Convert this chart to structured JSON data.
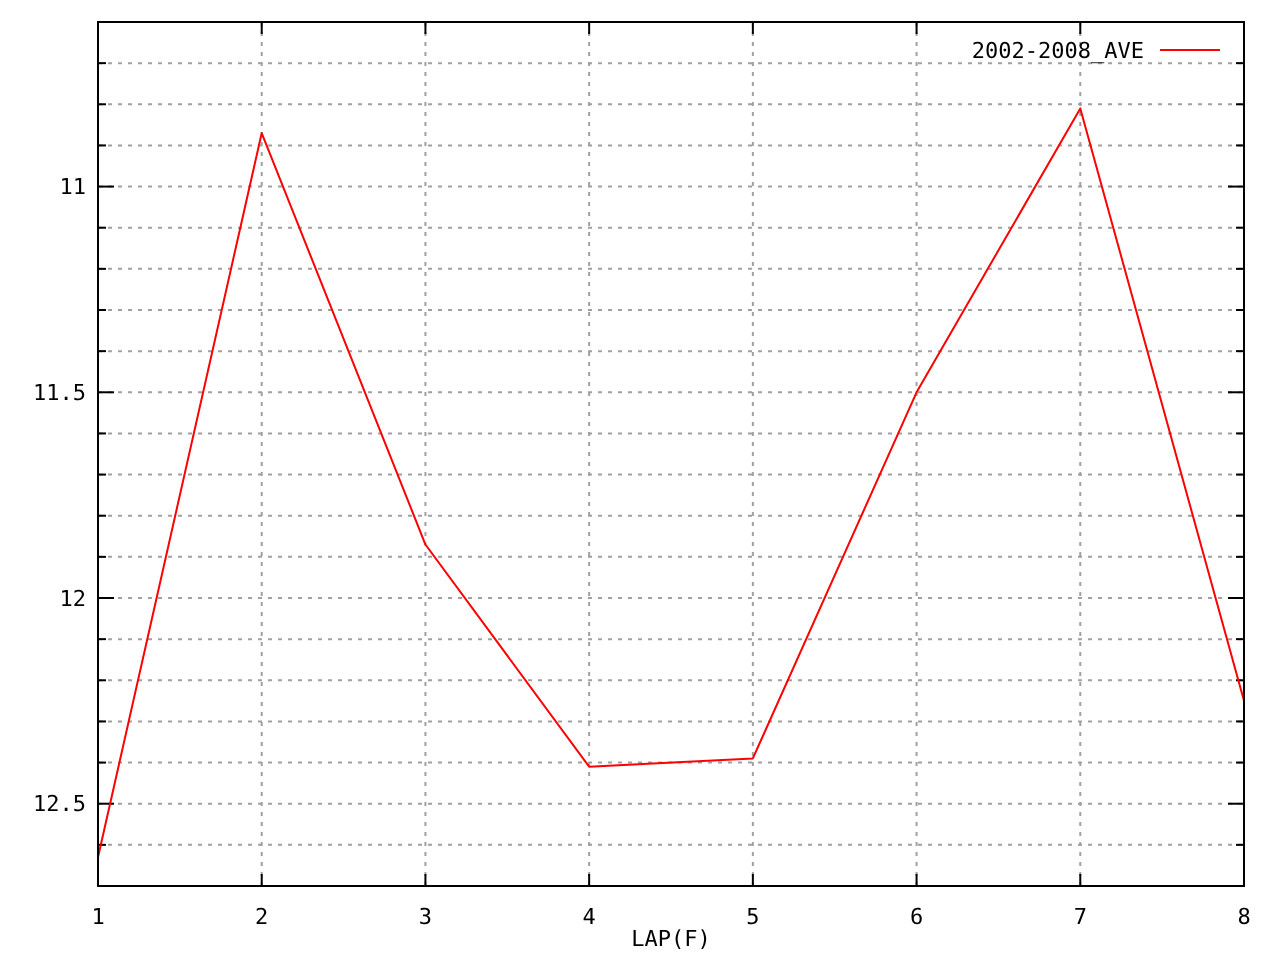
{
  "chart_data": {
    "type": "line",
    "xlabel": "LAP(F)",
    "x": [
      1,
      2,
      3,
      4,
      5,
      6,
      7,
      8
    ],
    "series": [
      {
        "name": "2002-2008_AVE",
        "color": "#ff0000",
        "values": [
          12.63,
          10.87,
          11.87,
          12.41,
          12.39,
          11.5,
          10.81,
          12.25
        ]
      }
    ],
    "xlim": [
      1,
      8
    ],
    "xticks": [
      1,
      2,
      3,
      4,
      5,
      6,
      7,
      8
    ],
    "ylim": [
      12.7,
      10.6
    ],
    "yticks": [
      {
        "value": 10.7,
        "label": null
      },
      {
        "value": 10.8,
        "label": null
      },
      {
        "value": 10.9,
        "label": null
      },
      11,
      {
        "value": 11.1,
        "label": null
      },
      {
        "value": 11.2,
        "label": null
      },
      {
        "value": 11.3,
        "label": null
      },
      {
        "value": 11.4,
        "label": null
      },
      11.5,
      {
        "value": 11.6,
        "label": null
      },
      {
        "value": 11.7,
        "label": null
      },
      {
        "value": 11.8,
        "label": null
      },
      {
        "value": 11.9,
        "label": null
      },
      12,
      {
        "value": 12.1,
        "label": null
      },
      {
        "value": 12.2,
        "label": null
      },
      {
        "value": 12.3,
        "label": null
      },
      {
        "value": 12.4,
        "label": null
      },
      12.5,
      {
        "value": 12.6,
        "label": null
      }
    ],
    "grid": true,
    "legend": "top right"
  }
}
